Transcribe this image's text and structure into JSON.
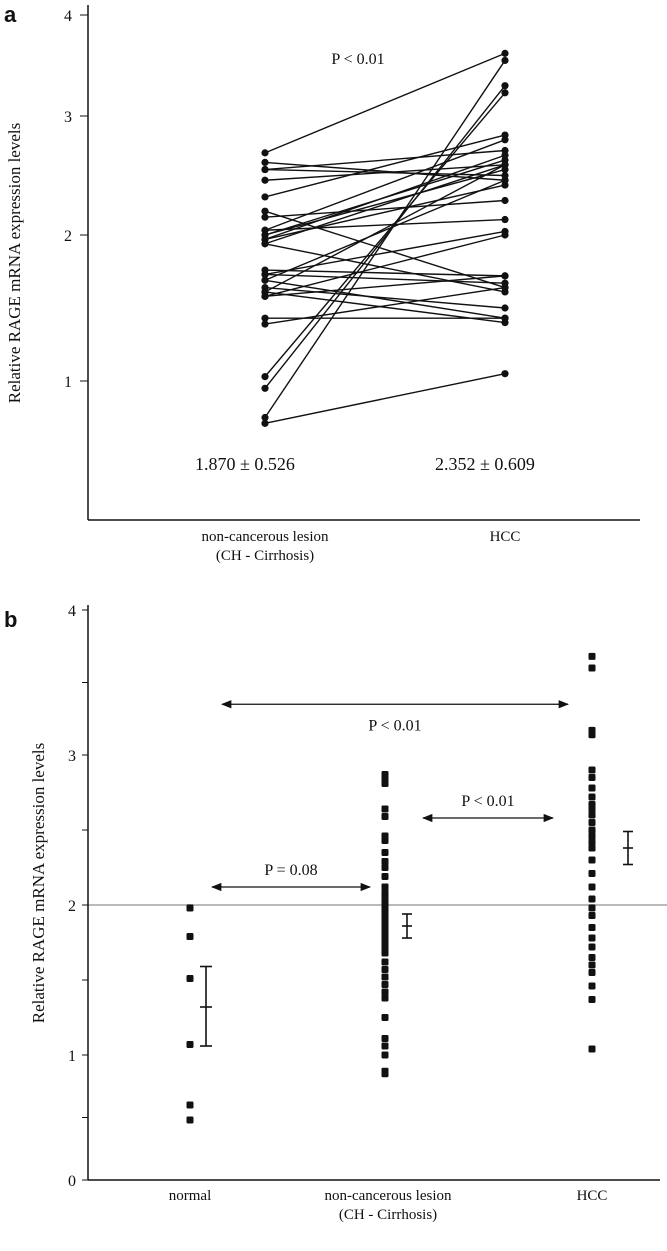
{
  "chart_data": [
    {
      "panel": "a",
      "type": "line",
      "ylabel": "Relative RAGE mRNA expression levels",
      "yticks": [
        1,
        2,
        3,
        4
      ],
      "categories": [
        "non-cancerous lesion\n(CH - Cirrhosis)",
        "HCC"
      ],
      "category_lines": [
        [
          "non-cancerous lesion",
          "(CH - Cirrhosis)"
        ],
        [
          "HCC"
        ]
      ],
      "annotation": "P < 0.01",
      "summary": [
        "1.870 ± 0.526",
        "2.352 ± 0.609"
      ],
      "pairs": [
        [
          2.69,
          3.62
        ],
        [
          2.61,
          2.46
        ],
        [
          2.55,
          2.71
        ],
        [
          2.55,
          2.5
        ],
        [
          2.46,
          2.59
        ],
        [
          2.32,
          2.84
        ],
        [
          2.2,
          1.64
        ],
        [
          2.15,
          2.29
        ],
        [
          2.04,
          2.8
        ],
        [
          2.04,
          2.13
        ],
        [
          2.0,
          2.63
        ],
        [
          2.0,
          2.55
        ],
        [
          1.97,
          2.67
        ],
        [
          1.97,
          2.42
        ],
        [
          1.94,
          1.61
        ],
        [
          1.94,
          2.59
        ],
        [
          1.76,
          1.72
        ],
        [
          1.73,
          1.67
        ],
        [
          1.73,
          2.03
        ],
        [
          1.69,
          2.46
        ],
        [
          1.69,
          1.43
        ],
        [
          1.64,
          1.5
        ],
        [
          1.61,
          2.59
        ],
        [
          1.61,
          1.4
        ],
        [
          1.58,
          2.0
        ],
        [
          1.58,
          1.72
        ],
        [
          1.43,
          1.43
        ],
        [
          1.39,
          1.64
        ],
        [
          1.03,
          3.23
        ],
        [
          0.95,
          3.3
        ],
        [
          0.75,
          3.55
        ],
        [
          0.71,
          1.05
        ]
      ]
    },
    {
      "panel": "b",
      "type": "scatter",
      "ylabel": "Relative RAGE mRNA expression levels",
      "yticks": [
        0,
        1,
        2,
        3,
        4
      ],
      "ylim": [
        0,
        4
      ],
      "reference_line": 2,
      "categories": [
        "normal",
        "non-cancerous lesion\n(CH - Cirrhosis)",
        "HCC"
      ],
      "category_lines": [
        [
          "normal"
        ],
        [
          "non-cancerous lesion",
          "(CH - Cirrhosis)"
        ],
        [
          "HCC"
        ]
      ],
      "groups": [
        {
          "values": [
            1.98,
            1.79,
            1.51,
            1.07,
            0.6,
            0.48
          ],
          "mean": 1.32,
          "err_low": 1.06,
          "err_high": 1.59
        },
        {
          "values": [
            2.87,
            2.84,
            2.81,
            2.64,
            2.59,
            2.46,
            2.43,
            2.35,
            2.29,
            2.25,
            2.19,
            2.12,
            2.08,
            2.05,
            2.02,
            1.99,
            1.97,
            1.94,
            1.91,
            1.88,
            1.85,
            1.82,
            1.8,
            1.77,
            1.74,
            1.71,
            1.68,
            1.62,
            1.57,
            1.52,
            1.47,
            1.42,
            1.38,
            1.25,
            1.11,
            1.06,
            1.0,
            0.87,
            0.85
          ],
          "mean": 1.86,
          "err_low": 1.78,
          "err_high": 1.94
        },
        {
          "values": [
            3.68,
            3.6,
            3.17,
            3.14,
            2.9,
            2.85,
            2.78,
            2.72,
            2.67,
            2.64,
            2.6,
            2.55,
            2.5,
            2.46,
            2.42,
            2.38,
            2.3,
            2.21,
            2.12,
            2.04,
            1.98,
            1.93,
            1.85,
            1.78,
            1.72,
            1.65,
            1.6,
            1.55,
            1.46,
            1.37,
            1.04
          ],
          "mean": 2.38,
          "err_low": 2.27,
          "err_high": 2.49
        }
      ],
      "comparisons": [
        {
          "from": 0,
          "to": 2,
          "level": 3.35,
          "label": "P < 0.01"
        },
        {
          "from": 1,
          "to": 2,
          "level": 2.58,
          "label": "P < 0.01"
        },
        {
          "from": 0,
          "to": 1,
          "level": 2.12,
          "label": "P = 0.08"
        }
      ]
    }
  ],
  "panel_labels": [
    "a",
    "b"
  ]
}
